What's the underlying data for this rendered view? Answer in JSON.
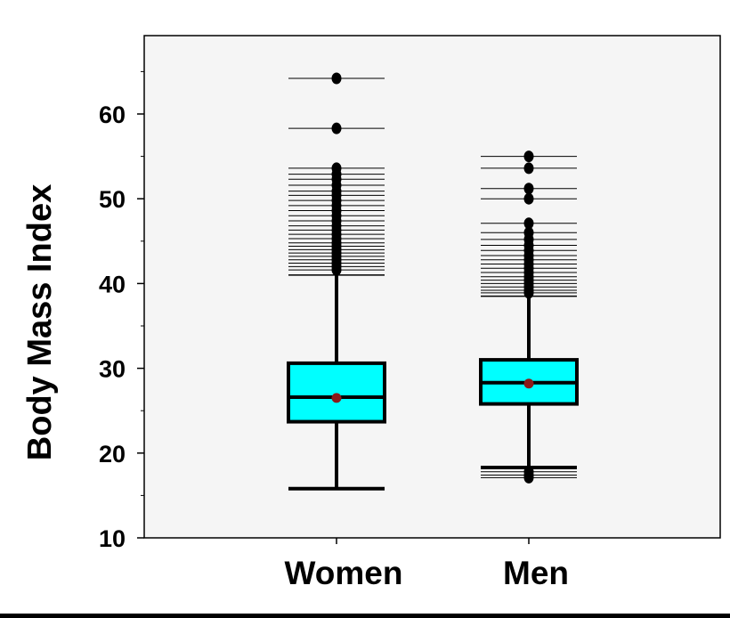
{
  "chart_data": {
    "type": "box",
    "ylabel": "Body Mass Index",
    "ylim": [
      10,
      66
    ],
    "yticks": [
      10,
      20,
      30,
      40,
      50,
      60
    ],
    "grid": false,
    "colors": {
      "box_fill": "#00FFFF",
      "mean_marker": "#8B1A1A",
      "outlier": "#000000"
    },
    "categories": [
      "Women",
      "Men"
    ],
    "boxes": [
      {
        "name": "Women",
        "q1": 23.7,
        "median": 26.6,
        "q3": 30.6,
        "mean": 26.5,
        "whisker_low": 15.8,
        "whisker_high": 41.0,
        "outliers_low": [],
        "outliers_high": [
          64.2,
          58.3,
          53.6,
          52.9,
          52.3,
          51.6,
          50.9,
          50.4,
          49.8,
          49.2,
          48.6,
          48.0,
          47.4,
          46.8,
          46.3,
          45.8,
          45.3,
          44.8,
          44.4,
          44.0,
          43.6,
          43.2,
          42.8,
          42.4,
          42.0,
          41.6
        ]
      },
      {
        "name": "Men",
        "q1": 25.8,
        "median": 28.3,
        "q3": 31.0,
        "mean": 28.2,
        "whisker_low": 18.3,
        "whisker_high": 38.5,
        "outliers_low": [
          17.8,
          17.4,
          17.1
        ],
        "outliers_high": [
          55.0,
          53.6,
          51.2,
          50.0,
          47.1,
          46.0,
          45.2,
          44.5,
          43.9,
          43.3,
          42.8,
          42.3,
          41.8,
          41.3,
          40.8,
          40.4,
          40.0,
          39.6,
          39.2,
          38.9
        ]
      }
    ]
  }
}
